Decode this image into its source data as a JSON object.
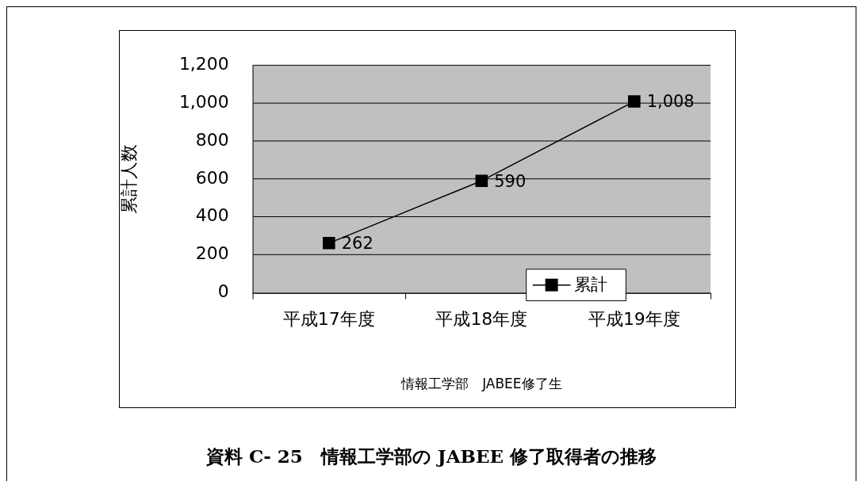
{
  "chart_data": {
    "type": "line",
    "categories": [
      "平成17年度",
      "平成18年度",
      "平成19年度"
    ],
    "series": [
      {
        "name": "累計",
        "color": "#000000",
        "values": [
          262,
          590,
          1008
        ],
        "value_labels": [
          "262",
          "590",
          "1,008"
        ]
      }
    ],
    "xlabel": "情報工学部　JABEE修了生",
    "ylabel": "累計人数",
    "ylim": [
      0,
      1200
    ],
    "yticks": [
      0,
      200,
      400,
      600,
      800,
      {
        "value": 1000,
        "label": "1,000"
      },
      {
        "value": 1200,
        "label": "1,200"
      }
    ],
    "grid": "y",
    "legend": "bottom right",
    "marker": "square",
    "line_style": "solid",
    "annotations": [
      "資料 C- 25　情報工学部の JABEE 修了取得者の推移"
    ]
  }
}
